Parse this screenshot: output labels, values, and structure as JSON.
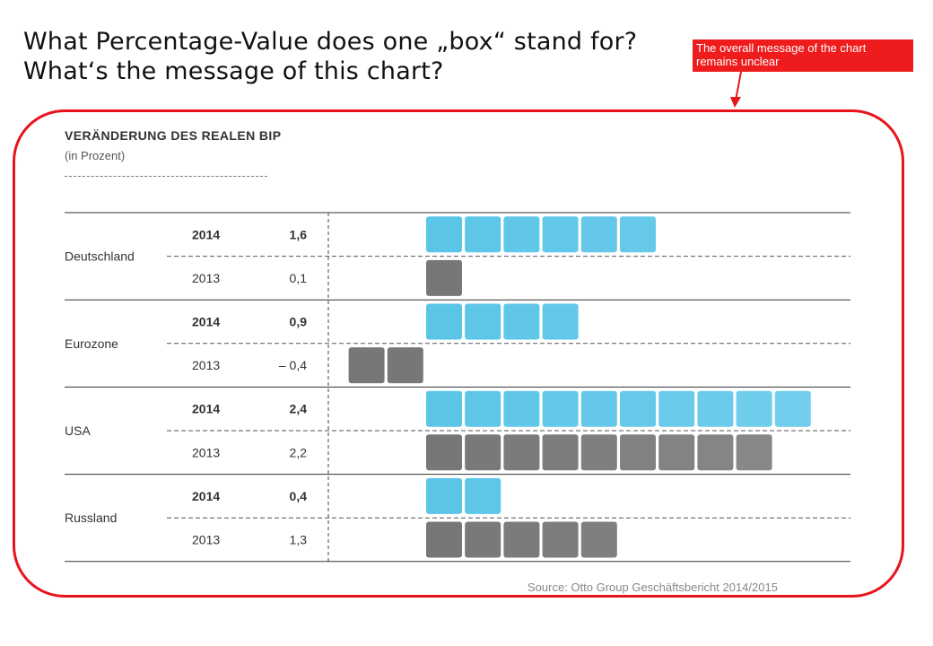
{
  "headline": {
    "line1": "What Percentage-Value does one „box“ stand for?",
    "line2": "What‘s the message of this chart?"
  },
  "callout": {
    "text": "The overall message of the chart remains unclear",
    "color": "#ee1c1c"
  },
  "source": "Source: Otto Group Geschäftsbericht 2014/2015",
  "chart_data": {
    "type": "bar",
    "title": "VERÄNDERUNG DES REALEN BIP",
    "subtitle": "(in Prozent)",
    "colors": {
      "2014": "#5bc5e8",
      "2013": "#777777"
    },
    "groups": [
      {
        "name": "Deutschland",
        "rows": [
          {
            "year": "2014",
            "value": 1.6,
            "label": "1,6",
            "bold": true,
            "boxes": 6
          },
          {
            "year": "2013",
            "value": 0.1,
            "label": "0,1",
            "bold": false,
            "boxes": 1
          }
        ]
      },
      {
        "name": "Eurozone",
        "rows": [
          {
            "year": "2014",
            "value": 0.9,
            "label": "0,9",
            "bold": true,
            "boxes": 4
          },
          {
            "year": "2013",
            "value": -0.4,
            "label": "– 0,4",
            "bold": false,
            "boxes": -2
          }
        ]
      },
      {
        "name": "USA",
        "rows": [
          {
            "year": "2014",
            "value": 2.4,
            "label": "2,4",
            "bold": true,
            "boxes": 10
          },
          {
            "year": "2013",
            "value": 2.2,
            "label": "2,2",
            "bold": false,
            "boxes": 9
          }
        ]
      },
      {
        "name": "Russland",
        "rows": [
          {
            "year": "2014",
            "value": 0.4,
            "label": "0,4",
            "bold": true,
            "boxes": 2
          },
          {
            "year": "2013",
            "value": 1.3,
            "label": "1,3",
            "bold": false,
            "boxes": 5
          }
        ]
      }
    ]
  }
}
